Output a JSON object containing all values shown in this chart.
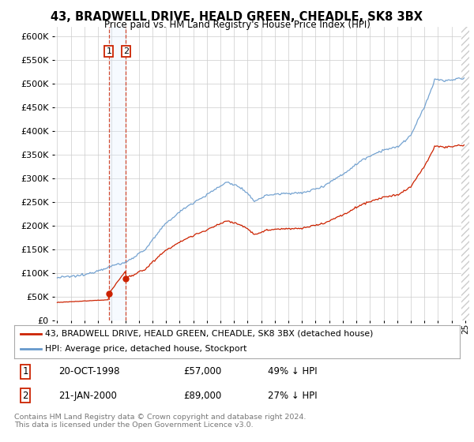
{
  "title": "43, BRADWELL DRIVE, HEALD GREEN, CHEADLE, SK8 3BX",
  "subtitle": "Price paid vs. HM Land Registry's House Price Index (HPI)",
  "footer": "Contains HM Land Registry data © Crown copyright and database right 2024.\nThis data is licensed under the Open Government Licence v3.0.",
  "legend_line1": "43, BRADWELL DRIVE, HEALD GREEN, CHEADLE, SK8 3BX (detached house)",
  "legend_line2": "HPI: Average price, detached house, Stockport",
  "sale1_date": "20-OCT-1998",
  "sale1_price": "£57,000",
  "sale1_hpi": "49% ↓ HPI",
  "sale2_date": "21-JAN-2000",
  "sale2_price": "£89,000",
  "sale2_hpi": "27% ↓ HPI",
  "sale1_year": 1998.8,
  "sale1_value": 57000,
  "sale2_year": 2000.05,
  "sale2_value": 89000,
  "ylim": [
    0,
    620000
  ],
  "xlim_start": 1994.8,
  "xlim_end": 2025.3,
  "hpi_color": "#6699cc",
  "property_color": "#cc2200",
  "dashed_vline_color": "#cc2200",
  "marker_color": "#cc2200",
  "grid_color": "#cccccc",
  "background_color": "#ffffff",
  "shaded_region_color": "#ddeeff",
  "hatch_color": "#cccccc"
}
